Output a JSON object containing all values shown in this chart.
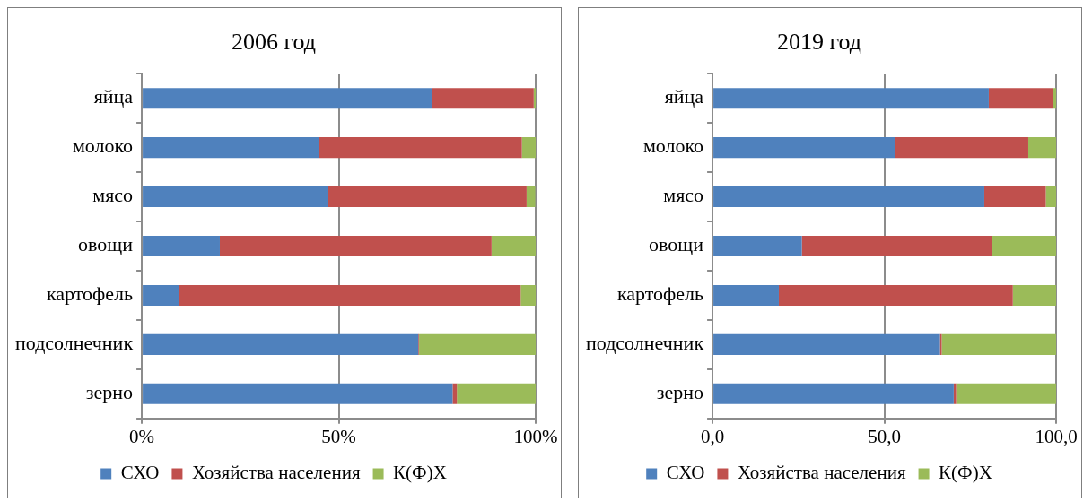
{
  "chart_data": [
    {
      "type": "bar",
      "orientation": "horizontal",
      "stacked": true,
      "title": "2006 год",
      "categories": [
        "яйца",
        "молоко",
        "мясо",
        "овощи",
        "картофель",
        "подсолнечник",
        "зерно"
      ],
      "series": [
        {
          "name": "СХО",
          "color": "#4f81bd",
          "values": [
            73.7,
            45.0,
            47.3,
            19.8,
            9.4,
            70.2,
            78.9
          ]
        },
        {
          "name": "Хозяйства населения",
          "color": "#c0504d",
          "values": [
            25.8,
            51.5,
            50.4,
            69.0,
            86.8,
            0.2,
            1.1
          ]
        },
        {
          "name": "К(Ф)Х",
          "color": "#9bbb59",
          "values": [
            0.5,
            3.5,
            2.2,
            11.2,
            3.8,
            29.6,
            20.0
          ]
        }
      ],
      "xlim": [
        0,
        100
      ],
      "xticks": [
        {
          "value": 0,
          "label": "0%"
        },
        {
          "value": 50,
          "label": "50%"
        },
        {
          "value": 100,
          "label": "100%"
        }
      ],
      "grid": "x",
      "legend": "bottom"
    },
    {
      "type": "bar",
      "orientation": "horizontal",
      "stacked": true,
      "title": "2019 год",
      "categories": [
        "яйца",
        "молоко",
        "мясо",
        "овощи",
        "картофель",
        "подсолнечник",
        "зерно"
      ],
      "series": [
        {
          "name": "СХО",
          "color": "#4f81bd",
          "values": [
            80.4,
            53.1,
            79.1,
            26.0,
            19.3,
            66.2,
            70.2
          ]
        },
        {
          "name": "Хозяйства населения",
          "color": "#c0504d",
          "values": [
            18.6,
            38.8,
            17.9,
            55.2,
            68.1,
            0.5,
            0.7
          ]
        },
        {
          "name": "К(Ф)Х",
          "color": "#9bbb59",
          "values": [
            1.0,
            8.1,
            3.0,
            18.8,
            12.6,
            33.3,
            29.1
          ]
        }
      ],
      "xlim": [
        0,
        100
      ],
      "xticks": [
        {
          "value": 0,
          "label": "0,0"
        },
        {
          "value": 50,
          "label": "50,0"
        },
        {
          "value": 100,
          "label": "100,0"
        }
      ],
      "grid": "x",
      "legend": "bottom"
    }
  ]
}
